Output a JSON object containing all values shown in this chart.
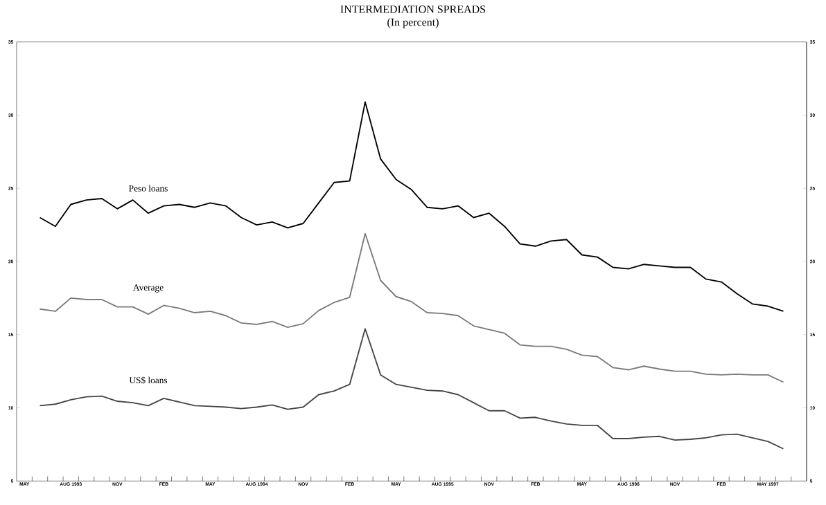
{
  "chart_data": {
    "type": "line",
    "title": "INTERMEDIATION SPREADS",
    "subtitle": "(In percent)",
    "x": [
      "1993-06-16",
      "1993-07-16",
      "1993-08-16",
      "1993-09-16",
      "1993-10-16",
      "1993-11-16",
      "1993-12-16",
      "1994-01-16",
      "1994-02-16",
      "1994-03-16",
      "1994-04-16",
      "1994-05-16",
      "1994-06-16",
      "1994-07-16",
      "1994-08-16",
      "1994-09-16",
      "1994-10-16",
      "1994-11-16",
      "1994-12-16",
      "1995-01-16",
      "1995-02-16",
      "1995-03-16",
      "1995-04-16",
      "1995-05-16",
      "1995-06-16",
      "1995-07-16",
      "1995-08-16",
      "1995-09-16",
      "1995-10-16",
      "1995-11-16",
      "1995-12-16",
      "1996-01-16",
      "1996-02-16",
      "1996-03-16",
      "1996-04-16",
      "1996-05-16",
      "1996-06-16",
      "1996-07-16",
      "1996-08-16",
      "1996-09-16",
      "1996-10-16",
      "1996-11-16",
      "1996-12-16",
      "1997-01-16",
      "1997-02-16",
      "1997-03-16",
      "1997-04-16",
      "1997-05-16",
      "1997-06-16"
    ],
    "series": [
      {
        "name": "Peso loans",
        "color": "#000000",
        "values": [
          23.0,
          22.4,
          23.9,
          24.2,
          24.3,
          23.6,
          24.2,
          23.3,
          23.8,
          23.9,
          23.7,
          24.0,
          23.8,
          23.0,
          22.5,
          22.7,
          22.3,
          22.6,
          24.0,
          25.4,
          25.5,
          30.9,
          27.0,
          25.6,
          24.9,
          23.7,
          23.6,
          23.8,
          23.0,
          23.3,
          22.4,
          21.2,
          21.05,
          21.4,
          21.5,
          20.45,
          20.3,
          19.6,
          19.5,
          19.8,
          19.7,
          19.6,
          19.6,
          18.8,
          18.6,
          17.8,
          17.1,
          16.95,
          16.6
        ]
      },
      {
        "name": "Average",
        "color": "#7a7a7a",
        "values": [
          16.75,
          16.6,
          17.5,
          17.4,
          17.4,
          16.9,
          16.9,
          16.4,
          17.0,
          16.8,
          16.5,
          16.6,
          16.3,
          15.8,
          15.7,
          15.9,
          15.5,
          15.75,
          16.65,
          17.2,
          17.55,
          21.9,
          18.7,
          17.6,
          17.25,
          16.5,
          16.45,
          16.3,
          15.6,
          15.35,
          15.1,
          14.3,
          14.2,
          14.2,
          14.0,
          13.6,
          13.5,
          12.75,
          12.6,
          12.85,
          12.65,
          12.5,
          12.5,
          12.3,
          12.25,
          12.3,
          12.25,
          12.25,
          11.75
        ]
      },
      {
        "name": "US$ loans",
        "color": "#454545",
        "values": [
          10.15,
          10.25,
          10.55,
          10.75,
          10.8,
          10.45,
          10.35,
          10.15,
          10.65,
          10.4,
          10.15,
          10.1,
          10.05,
          9.95,
          10.05,
          10.2,
          9.9,
          10.05,
          10.9,
          11.15,
          11.6,
          15.4,
          12.25,
          11.6,
          11.4,
          11.2,
          11.15,
          10.9,
          10.35,
          9.8,
          9.8,
          9.3,
          9.35,
          9.1,
          8.9,
          8.8,
          8.8,
          7.9,
          7.9,
          8.0,
          8.05,
          7.8,
          7.85,
          7.95,
          8.15,
          8.2,
          7.95,
          7.7,
          7.2
        ]
      }
    ],
    "xlim": [
      "1993-05",
      "1997-08"
    ],
    "xticks": [
      {
        "value": "1993-05-16",
        "label": "MAY"
      },
      {
        "value": "1993-08-16",
        "label": "AUG 1993"
      },
      {
        "value": "1993-11-16",
        "label": "NOV"
      },
      {
        "value": "1994-02-16",
        "label": "FEB"
      },
      {
        "value": "1994-05-16",
        "label": "MAY"
      },
      {
        "value": "1994-08-16",
        "label": "AUG 1994"
      },
      {
        "value": "1994-11-16",
        "label": "NOV"
      },
      {
        "value": "1995-02-16",
        "label": "FEB"
      },
      {
        "value": "1995-05-16",
        "label": "MAY"
      },
      {
        "value": "1995-08-16",
        "label": "AUG 1995"
      },
      {
        "value": "1995-11-16",
        "label": "NOV"
      },
      {
        "value": "1996-02-16",
        "label": "FEB"
      },
      {
        "value": "1996-05-16",
        "label": "MAY"
      },
      {
        "value": "1996-08-16",
        "label": "AUG 1996"
      },
      {
        "value": "1996-11-16",
        "label": "NOV"
      },
      {
        "value": "1997-02-16",
        "label": "FEB"
      },
      {
        "value": "1997-05-16",
        "label": "MAY 1997"
      },
      {
        "value": "1993-06",
        "label": null
      },
      {
        "value": "1993-07",
        "label": null
      },
      {
        "value": "1993-08",
        "label": null
      },
      {
        "value": "1993-09",
        "label": null
      },
      {
        "value": "1993-10",
        "label": null
      },
      {
        "value": "1993-11",
        "label": null
      },
      {
        "value": "1993-12",
        "label": null
      },
      {
        "value": "1994-01",
        "label": null
      },
      {
        "value": "1994-02",
        "label": null
      },
      {
        "value": "1994-03",
        "label": null
      },
      {
        "value": "1994-04",
        "label": null
      },
      {
        "value": "1994-05",
        "label": null
      },
      {
        "value": "1994-06",
        "label": null
      },
      {
        "value": "1994-07",
        "label": null
      },
      {
        "value": "1994-08",
        "label": null
      },
      {
        "value": "1994-09",
        "label": null
      },
      {
        "value": "1994-10",
        "label": null
      },
      {
        "value": "1994-11",
        "label": null
      },
      {
        "value": "1994-12",
        "label": null
      },
      {
        "value": "1995-01",
        "label": null
      },
      {
        "value": "1995-02",
        "label": null
      },
      {
        "value": "1995-03",
        "label": null
      },
      {
        "value": "1995-04",
        "label": null
      },
      {
        "value": "1995-05",
        "label": null
      },
      {
        "value": "1995-06",
        "label": null
      },
      {
        "value": "1995-07",
        "label": null
      },
      {
        "value": "1995-08",
        "label": null
      },
      {
        "value": "1995-09",
        "label": null
      },
      {
        "value": "1995-10",
        "label": null
      },
      {
        "value": "1995-11",
        "label": null
      },
      {
        "value": "1995-12",
        "label": null
      },
      {
        "value": "1996-01",
        "label": null
      },
      {
        "value": "1996-02",
        "label": null
      },
      {
        "value": "1996-03",
        "label": null
      },
      {
        "value": "1996-04",
        "label": null
      },
      {
        "value": "1996-05",
        "label": null
      },
      {
        "value": "1996-06",
        "label": null
      },
      {
        "value": "1996-07",
        "label": null
      },
      {
        "value": "1996-08",
        "label": null
      },
      {
        "value": "1996-09",
        "label": null
      },
      {
        "value": "1996-10",
        "label": null
      },
      {
        "value": "1996-11",
        "label": null
      },
      {
        "value": "1996-12",
        "label": null
      },
      {
        "value": "1997-01",
        "label": null
      },
      {
        "value": "1997-02",
        "label": null
      },
      {
        "value": "1997-03",
        "label": null
      },
      {
        "value": "1997-04",
        "label": null
      },
      {
        "value": "1997-05",
        "label": null
      },
      {
        "value": "1997-06",
        "label": null
      },
      {
        "value": "1997-07",
        "label": null
      }
    ],
    "ylim": [
      5,
      35
    ],
    "yticks": [
      5,
      10,
      15,
      20,
      25,
      30,
      35
    ],
    "y2lim": [
      5,
      35
    ],
    "y2ticks": [
      5,
      10,
      15,
      20,
      25,
      30,
      35
    ],
    "grid": false,
    "legend": false,
    "marker": "none",
    "line_style": "solid"
  }
}
